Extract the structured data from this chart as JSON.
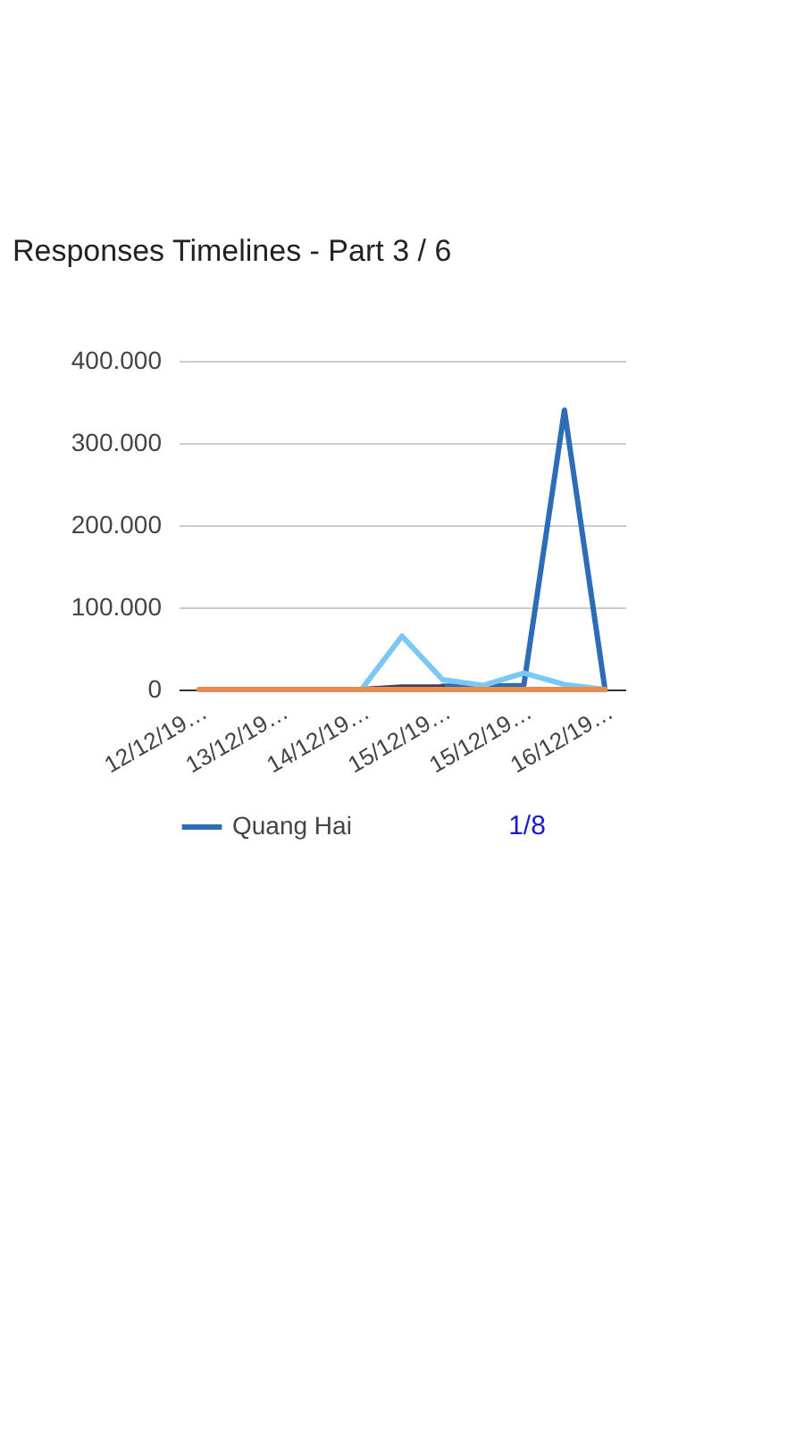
{
  "chart_data": {
    "type": "line",
    "title": "Responses Timelines - Part 3 / 6",
    "categories": [
      "12/12/19…",
      null,
      "13/12/19…",
      null,
      "14/12/19…",
      null,
      "15/12/19…",
      null,
      "15/12/19…",
      null,
      "16/12/19…"
    ],
    "series": [
      {
        "name": "Quang Hai",
        "color": "#2d6cb7",
        "values": [
          null,
          null,
          null,
          null,
          null,
          null,
          4000,
          4000,
          5000,
          340000,
          0
        ]
      },
      {
        "color": "#394060",
        "values": [
          null,
          null,
          null,
          null,
          0,
          3000,
          3000,
          null,
          null,
          null,
          null
        ]
      },
      {
        "color": "#7ac8f4",
        "values": [
          null,
          null,
          null,
          null,
          0,
          65000,
          12000,
          5000,
          20000,
          6000,
          0
        ]
      },
      {
        "color": "#eb8a4e",
        "values": [
          0,
          0,
          0,
          0,
          0,
          0,
          0,
          0,
          0,
          0,
          0
        ]
      }
    ],
    "ylim": [
      0,
      400000
    ],
    "yticks": [
      0,
      {
        "value": 100000,
        "label": "100.000"
      },
      {
        "value": 200000,
        "label": "200.000"
      },
      {
        "value": 300000,
        "label": "300.000"
      },
      {
        "value": 400000,
        "label": "400.000"
      }
    ],
    "grid": "y",
    "legend": "bottom",
    "annotations": [
      "1/8"
    ]
  }
}
